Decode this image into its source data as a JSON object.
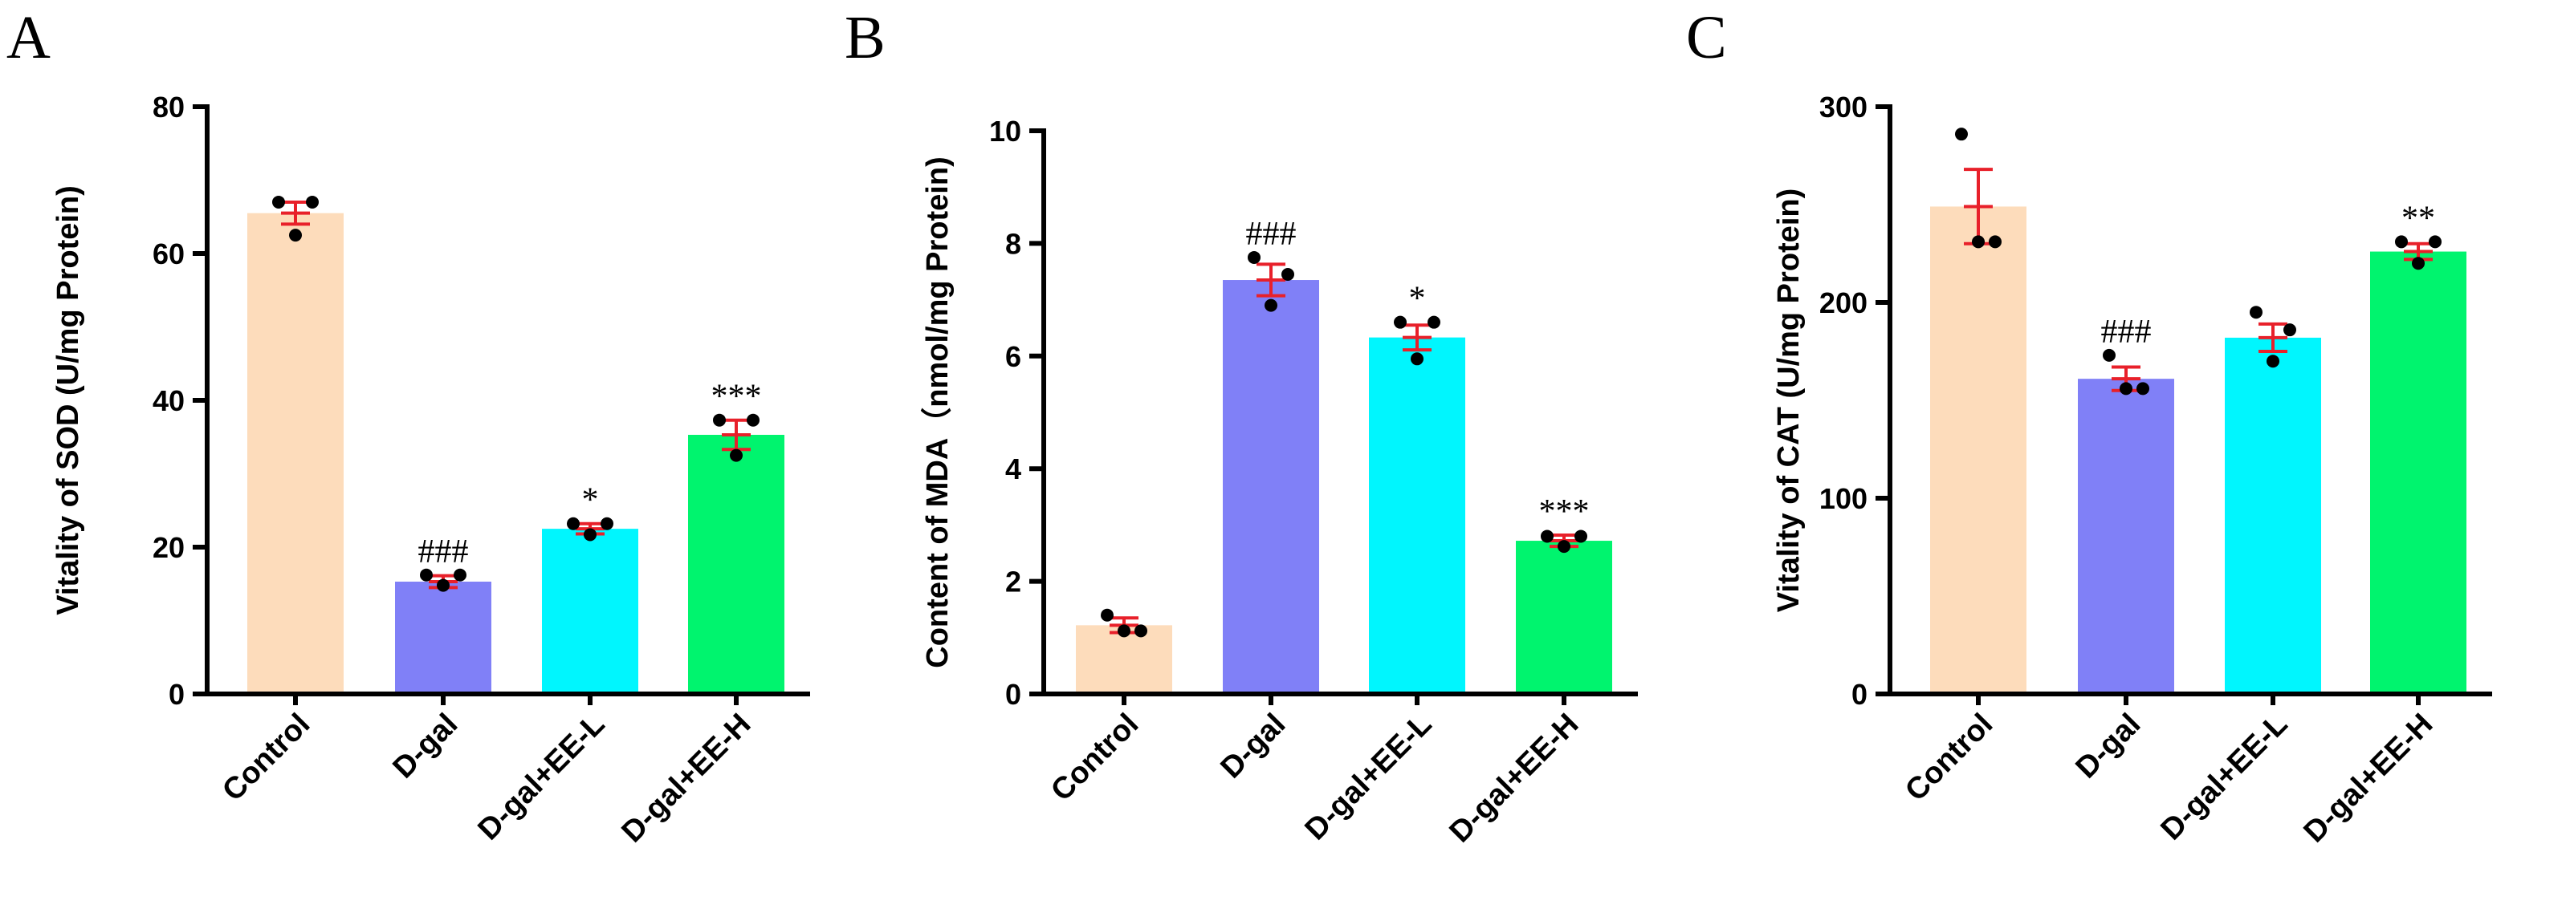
{
  "colors": {
    "bar_fill": [
      "#fddcbb",
      "#8080f7",
      "#00f6fe",
      "#00f46e"
    ],
    "error": "#e8202a",
    "point": "#000000",
    "axis": "#000000"
  },
  "chart_data": [
    {
      "type": "bar",
      "panel": "A",
      "categories": [
        "Control",
        "D-gal",
        "D-gal+EE-L",
        "D-gal+EE-H"
      ],
      "values": [
        65.5,
        15.3,
        22.5,
        35.3
      ],
      "error": [
        1.5,
        0.8,
        0.7,
        2.0
      ],
      "points": [
        [
          67.0,
          67.0,
          62.5
        ],
        [
          16.2,
          16.2,
          14.8
        ],
        [
          23.2,
          23.2,
          21.7
        ],
        [
          37.3,
          37.3,
          32.5
        ]
      ],
      "significance": [
        "",
        "###",
        "*",
        "***"
      ],
      "ylabel": "Vitality of SOD (U/mg Protein)",
      "xlabel": "",
      "ylim": [
        0,
        80
      ],
      "yticks": [
        0,
        20,
        40,
        60,
        80
      ]
    },
    {
      "type": "bar",
      "panel": "B",
      "categories": [
        "Control",
        "D-gal",
        "D-gal+EE-L",
        "D-gal+EE-H"
      ],
      "values": [
        1.22,
        7.35,
        6.33,
        2.72
      ],
      "error": [
        0.13,
        0.28,
        0.22,
        0.1
      ],
      "points": [
        [
          1.4,
          1.12,
          1.12
        ],
        [
          7.75,
          7.45,
          6.9
        ],
        [
          6.6,
          6.6,
          5.95
        ],
        [
          2.8,
          2.8,
          2.62
        ]
      ],
      "significance": [
        "",
        "###",
        "*",
        "***"
      ],
      "ylabel": "Content of MDA（nmol/mg Protein)",
      "xlabel": "",
      "ylim": [
        0,
        10
      ],
      "yticks": [
        0,
        2,
        4,
        6,
        8,
        10
      ]
    },
    {
      "type": "bar",
      "panel": "C",
      "categories": [
        "Control",
        "D-gal",
        "D-gal+EE-L",
        "D-gal+EE-H"
      ],
      "values": [
        249,
        161,
        182,
        226
      ],
      "error": [
        19,
        6,
        7,
        4
      ],
      "points": [
        [
          286,
          231,
          231
        ],
        [
          173,
          156,
          156
        ],
        [
          195,
          186,
          170
        ],
        [
          231,
          231,
          220
        ]
      ],
      "significance": [
        "",
        "###",
        "",
        "**"
      ],
      "ylabel": "Vitality of CAT (U/mg Protein)",
      "xlabel": "",
      "ylim": [
        0,
        300
      ],
      "yticks": [
        0,
        100,
        200,
        300
      ]
    }
  ]
}
